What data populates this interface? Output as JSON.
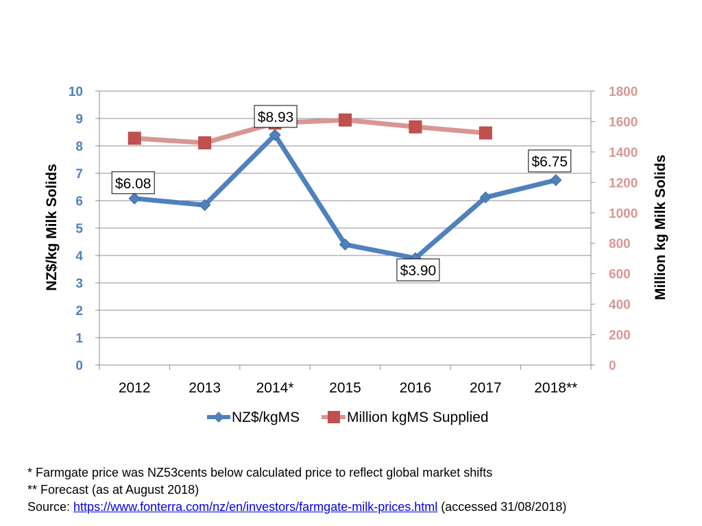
{
  "chart_data": {
    "type": "line",
    "categories": [
      "2012",
      "2013",
      "2014*",
      "2015",
      "2016",
      "2017",
      "2018**"
    ],
    "series": [
      {
        "name": "NZ$/kgMS",
        "axis": "left",
        "color": "#4f81bd",
        "marker": "diamond",
        "values": [
          6.08,
          5.84,
          8.4,
          4.4,
          3.9,
          6.12,
          6.75
        ]
      },
      {
        "name": "Million kgMS Supplied",
        "axis": "right",
        "color": "#d99694",
        "marker_color": "#c0504d",
        "marker": "square",
        "values": [
          1490,
          1460,
          1590,
          1610,
          1565,
          1525,
          null
        ]
      }
    ],
    "ylabel_left": "NZ$/kg Milk Solids",
    "ylabel_right": "Million kg Milk Solids",
    "ylim_left": [
      0,
      10
    ],
    "ylim_right": [
      0,
      1800
    ],
    "yticks_left": [
      "0",
      "1",
      "2",
      "3",
      "4",
      "5",
      "6",
      "7",
      "8",
      "9",
      "10"
    ],
    "yticks_right": [
      "0",
      "200",
      "400",
      "600",
      "800",
      "1000",
      "1200",
      "1400",
      "1600",
      "1800"
    ],
    "grid": true,
    "legend_position": "bottom",
    "annotations": [
      {
        "text": "$6.08",
        "category": "2012"
      },
      {
        "text": "$8.93",
        "category": "2014*"
      },
      {
        "text": "$3.90",
        "category": "2016"
      },
      {
        "text": "$6.75",
        "category": "2018**"
      }
    ]
  },
  "footnotes": {
    "line1": "* Farmgate price was NZ53cents below calculated price to reflect global market shifts",
    "line2": "** Forecast (as at August 2018)",
    "source_prefix": "Source: ",
    "source_link": "https://www.fonterra.com/nz/en/investors/farmgate-milk-prices.html",
    "source_suffix": " (accessed 31/08/2018)"
  }
}
